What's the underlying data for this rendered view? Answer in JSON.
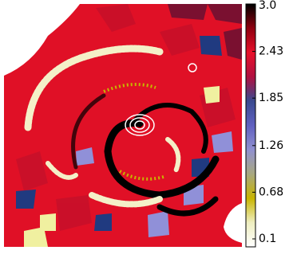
{
  "chart_data": {
    "type": "colormap-image",
    "colorbar": {
      "ylim": [
        0.1,
        3.0
      ],
      "yticks": [
        {
          "value": 3.0,
          "label": "3.0"
        },
        2.43,
        1.85,
        1.26,
        0.68,
        0.1
      ],
      "colors": [
        "#ffffff",
        "#eeeec0",
        "#c8b400",
        "#a8a880",
        "#9090d0",
        "#6060c0",
        "#3a4a90",
        "#b01040",
        "#e8102a",
        "#900010",
        "#000000"
      ]
    }
  }
}
